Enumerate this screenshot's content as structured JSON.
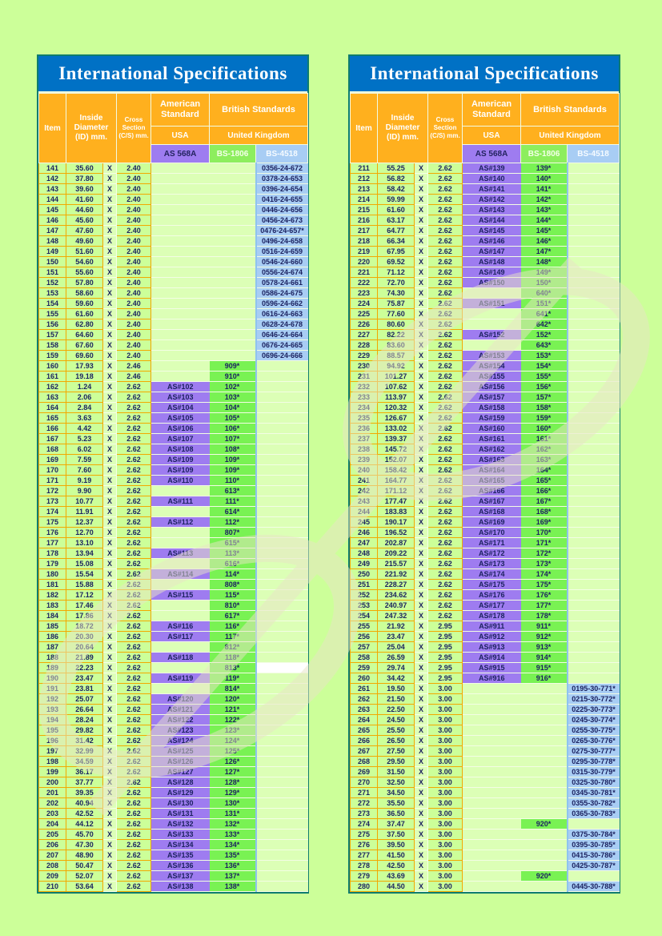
{
  "title": "International Specifications",
  "headers": {
    "item": "Item",
    "inside_diameter": "Inside Diameter (ID) mm.",
    "cross_section": "Cross Section (C/S) mm.",
    "american_standard": "American Standard",
    "british_standards": "British Standards",
    "usa": "USA",
    "united_kingdom": "United Kingdom",
    "as568a": "AS 568A",
    "bs1806": "BS-1806",
    "bs4518": "BS-4518"
  },
  "x_separator": "X",
  "colors": {
    "page_background": "#ccff99",
    "title_bar": "#0071c5",
    "header_orange": "#ffb01e",
    "as568a_purple": "#9e7cf0",
    "bs1806_green": "#79f253",
    "bs4518_blue": "#a8cdf4",
    "panel_border_teal": "#0e7c6e",
    "grid_orange": "#f2a800",
    "text_navy": "#1c2260"
  },
  "left_table": {
    "white_bs4518_item": 189,
    "rows": [
      [
        141,
        "35.60",
        "2.40",
        "",
        "",
        "0356-24-672"
      ],
      [
        142,
        "37.80",
        "2.40",
        "",
        "",
        "0378-24-653"
      ],
      [
        143,
        "39.60",
        "2.40",
        "",
        "",
        "0396-24-654"
      ],
      [
        144,
        "41.60",
        "2.40",
        "",
        "",
        "0416-24-655"
      ],
      [
        145,
        "44.60",
        "2.40",
        "",
        "",
        "0446-24-656"
      ],
      [
        146,
        "45.60",
        "2.40",
        "",
        "",
        "0456-24-673"
      ],
      [
        147,
        "47.60",
        "2.40",
        "",
        "",
        "0476-24-657*"
      ],
      [
        148,
        "49.60",
        "2.40",
        "",
        "",
        "0496-24-658"
      ],
      [
        149,
        "51.60",
        "2.40",
        "",
        "",
        "0516-24-659"
      ],
      [
        150,
        "54.60",
        "2.40",
        "",
        "",
        "0546-24-660"
      ],
      [
        151,
        "55.60",
        "2.40",
        "",
        "",
        "0556-24-674"
      ],
      [
        152,
        "57.80",
        "2.40",
        "",
        "",
        "0578-24-661"
      ],
      [
        153,
        "58.60",
        "2.40",
        "",
        "",
        "0586-24-675"
      ],
      [
        154,
        "59.60",
        "2.40",
        "",
        "",
        "0596-24-662"
      ],
      [
        155,
        "61.60",
        "2.40",
        "",
        "",
        "0616-24-663"
      ],
      [
        156,
        "62.80",
        "2.40",
        "",
        "",
        "0628-24-678"
      ],
      [
        157,
        "64.60",
        "2.40",
        "",
        "",
        "0646-24-664"
      ],
      [
        158,
        "67.60",
        "2.40",
        "",
        "",
        "0676-24-665"
      ],
      [
        159,
        "69.60",
        "2.40",
        "",
        "",
        "0696-24-666"
      ],
      [
        160,
        "17.93",
        "2.46",
        "",
        "909*",
        ""
      ],
      [
        161,
        "19.18",
        "2.46",
        "",
        "910*",
        ""
      ],
      [
        162,
        "1.24",
        "2.62",
        "AS#102",
        "102*",
        ""
      ],
      [
        163,
        "2.06",
        "2.62",
        "AS#103",
        "103*",
        ""
      ],
      [
        164,
        "2.84",
        "2.62",
        "AS#104",
        "104*",
        ""
      ],
      [
        165,
        "3.63",
        "2.62",
        "AS#105",
        "105*",
        ""
      ],
      [
        166,
        "4.42",
        "2.62",
        "AS#106",
        "106*",
        ""
      ],
      [
        167,
        "5.23",
        "2.62",
        "AS#107",
        "107*",
        ""
      ],
      [
        168,
        "6.02",
        "2.62",
        "AS#108",
        "108*",
        ""
      ],
      [
        169,
        "7.59",
        "2.62",
        "AS#109",
        "109*",
        ""
      ],
      [
        170,
        "7.60",
        "2.62",
        "AS#109",
        "109*",
        ""
      ],
      [
        171,
        "9.19",
        "2.62",
        "AS#110",
        "110*",
        ""
      ],
      [
        172,
        "9.90",
        "2.62",
        "",
        "613*",
        ""
      ],
      [
        173,
        "10.77",
        "2.62",
        "AS#111",
        "111*",
        ""
      ],
      [
        174,
        "11.91",
        "2.62",
        "",
        "614*",
        ""
      ],
      [
        175,
        "12.37",
        "2.62",
        "AS#112",
        "112*",
        ""
      ],
      [
        176,
        "12.70",
        "2.62",
        "",
        "807*",
        ""
      ],
      [
        177,
        "13.10",
        "2.62",
        "",
        "615*",
        ""
      ],
      [
        178,
        "13.94",
        "2.62",
        "AS#113",
        "113*",
        ""
      ],
      [
        179,
        "15.08",
        "2.62",
        "",
        "616*",
        ""
      ],
      [
        180,
        "15.54",
        "2.62",
        "AS#114",
        "114*",
        ""
      ],
      [
        181,
        "15.88",
        "2.62",
        "",
        "808*",
        ""
      ],
      [
        182,
        "17.12",
        "2.62",
        "AS#115",
        "115*",
        ""
      ],
      [
        183,
        "17.46",
        "2.62",
        "",
        "810*",
        ""
      ],
      [
        184,
        "17.86",
        "2.62",
        "",
        "617*",
        ""
      ],
      [
        185,
        "18.72",
        "2.62",
        "AS#116",
        "116*",
        ""
      ],
      [
        186,
        "20.30",
        "2.62",
        "AS#117",
        "117*",
        ""
      ],
      [
        187,
        "20.64",
        "2.62",
        "",
        "812*",
        ""
      ],
      [
        188,
        "21.89",
        "2.62",
        "AS#118",
        "118*",
        ""
      ],
      [
        189,
        "22.23",
        "2.62",
        "",
        "813*",
        ""
      ],
      [
        190,
        "23.47",
        "2.62",
        "AS#119",
        "119*",
        ""
      ],
      [
        191,
        "23.81",
        "2.62",
        "",
        "814*",
        ""
      ],
      [
        192,
        "25.07",
        "2.62",
        "AS#120",
        "120*",
        ""
      ],
      [
        193,
        "26.64",
        "2.62",
        "AS#121",
        "121*",
        ""
      ],
      [
        194,
        "28.24",
        "2.62",
        "AS#122",
        "122*",
        ""
      ],
      [
        195,
        "29.82",
        "2.62",
        "AS#123",
        "123*",
        ""
      ],
      [
        196,
        "31.42",
        "2.62",
        "AS#124",
        "124*",
        ""
      ],
      [
        197,
        "32.99",
        "2.62",
        "AS#125",
        "125*",
        ""
      ],
      [
        198,
        "34.59",
        "2.62",
        "AS#126",
        "126*",
        ""
      ],
      [
        199,
        "36.17",
        "2.62",
        "AS#127",
        "127*",
        ""
      ],
      [
        200,
        "37.77",
        "2.62",
        "AS#128",
        "128*",
        ""
      ],
      [
        201,
        "39.35",
        "2.62",
        "AS#129",
        "129*",
        ""
      ],
      [
        202,
        "40.94",
        "2.62",
        "AS#130",
        "130*",
        ""
      ],
      [
        203,
        "42.52",
        "2.62",
        "AS#131",
        "131*",
        ""
      ],
      [
        204,
        "44.12",
        "2.62",
        "AS#132",
        "132*",
        ""
      ],
      [
        205,
        "45.70",
        "2.62",
        "AS#133",
        "133*",
        ""
      ],
      [
        206,
        "47.30",
        "2.62",
        "AS#134",
        "134*",
        ""
      ],
      [
        207,
        "48.90",
        "2.62",
        "AS#135",
        "135*",
        ""
      ],
      [
        208,
        "50.47",
        "2.62",
        "AS#136",
        "136*",
        ""
      ],
      [
        209,
        "52.07",
        "2.62",
        "AS#137",
        "137*",
        ""
      ],
      [
        210,
        "53.64",
        "2.62",
        "AS#138",
        "138*",
        ""
      ]
    ]
  },
  "right_table": {
    "rows": [
      [
        211,
        "55.25",
        "2.62",
        "AS#139",
        "139*",
        ""
      ],
      [
        212,
        "56.82",
        "2.62",
        "AS#140",
        "140*",
        ""
      ],
      [
        213,
        "58.42",
        "2.62",
        "AS#141",
        "141*",
        ""
      ],
      [
        214,
        "59.99",
        "2.62",
        "AS#142",
        "142*",
        ""
      ],
      [
        215,
        "61.60",
        "2.62",
        "AS#143",
        "143*",
        ""
      ],
      [
        216,
        "63.17",
        "2.62",
        "AS#144",
        "144*",
        ""
      ],
      [
        217,
        "64.77",
        "2.62",
        "AS#145",
        "145*",
        ""
      ],
      [
        218,
        "66.34",
        "2.62",
        "AS#146",
        "146*",
        ""
      ],
      [
        219,
        "67.95",
        "2.62",
        "AS#147",
        "147*",
        ""
      ],
      [
        220,
        "69.52",
        "2.62",
        "AS#148",
        "148*",
        ""
      ],
      [
        221,
        "71.12",
        "2.62",
        "AS#149",
        "149*",
        ""
      ],
      [
        222,
        "72.70",
        "2.62",
        "AS#150",
        "150*",
        ""
      ],
      [
        223,
        "74.30",
        "2.62",
        "",
        "640*",
        ""
      ],
      [
        224,
        "75.87",
        "2.62",
        "AS#151",
        "151*",
        ""
      ],
      [
        225,
        "77.60",
        "2.62",
        "",
        "641*",
        ""
      ],
      [
        226,
        "80.60",
        "2.62",
        "",
        "642*",
        ""
      ],
      [
        227,
        "82.22",
        "2.62",
        "AS#152",
        "152*",
        ""
      ],
      [
        228,
        "83.60",
        "2.62",
        "",
        "643*",
        ""
      ],
      [
        229,
        "88.57",
        "2.62",
        "AS#153",
        "153*",
        ""
      ],
      [
        230,
        "94.92",
        "2.62",
        "AS#154",
        "154*",
        ""
      ],
      [
        231,
        "101.27",
        "2.62",
        "AS#155",
        "155*",
        ""
      ],
      [
        232,
        "107.62",
        "2.62",
        "AS#156",
        "156*",
        ""
      ],
      [
        233,
        "113.97",
        "2.62",
        "AS#157",
        "157*",
        ""
      ],
      [
        234,
        "120.32",
        "2.62",
        "AS#158",
        "158*",
        ""
      ],
      [
        235,
        "126.67",
        "2.62",
        "AS#159",
        "159*",
        ""
      ],
      [
        236,
        "133.02",
        "2.62",
        "AS#160",
        "160*",
        ""
      ],
      [
        237,
        "139.37",
        "2.62",
        "AS#161",
        "161*",
        ""
      ],
      [
        238,
        "145.72",
        "2.62",
        "AS#162",
        "162*",
        ""
      ],
      [
        239,
        "152.07",
        "2.62",
        "AS#163",
        "163*",
        ""
      ],
      [
        240,
        "158.42",
        "2.62",
        "AS#164",
        "164*",
        ""
      ],
      [
        241,
        "164.77",
        "2.62",
        "AS#165",
        "165*",
        ""
      ],
      [
        242,
        "171.12",
        "2.62",
        "AS#166",
        "166*",
        ""
      ],
      [
        243,
        "177.47",
        "2.62",
        "AS#167",
        "167*",
        ""
      ],
      [
        244,
        "183.83",
        "2.62",
        "AS#168",
        "168*",
        ""
      ],
      [
        245,
        "190.17",
        "2.62",
        "AS#169",
        "169*",
        ""
      ],
      [
        246,
        "196.52",
        "2.62",
        "AS#170",
        "170*",
        ""
      ],
      [
        247,
        "202.87",
        "2.62",
        "AS#171",
        "171*",
        ""
      ],
      [
        248,
        "209.22",
        "2.62",
        "AS#172",
        "172*",
        ""
      ],
      [
        249,
        "215.57",
        "2.62",
        "AS#173",
        "173*",
        ""
      ],
      [
        250,
        "221.92",
        "2.62",
        "AS#174",
        "174*",
        ""
      ],
      [
        251,
        "228.27",
        "2.62",
        "AS#175",
        "175*",
        ""
      ],
      [
        252,
        "234.62",
        "2.62",
        "AS#176",
        "176*",
        ""
      ],
      [
        253,
        "240.97",
        "2.62",
        "AS#177",
        "177*",
        ""
      ],
      [
        254,
        "247.32",
        "2.62",
        "AS#178",
        "178*",
        ""
      ],
      [
        255,
        "21.92",
        "2.95",
        "AS#911",
        "911*",
        ""
      ],
      [
        256,
        "23.47",
        "2.95",
        "AS#912",
        "912*",
        ""
      ],
      [
        257,
        "25.04",
        "2.95",
        "AS#913",
        "913*",
        ""
      ],
      [
        258,
        "26.59",
        "2.95",
        "AS#914",
        "914*",
        ""
      ],
      [
        259,
        "29.74",
        "2.95",
        "AS#915",
        "915*",
        ""
      ],
      [
        260,
        "34.42",
        "2.95",
        "AS#916",
        "916*",
        ""
      ],
      [
        261,
        "19.50",
        "3.00",
        "",
        "",
        "0195-30-771*"
      ],
      [
        262,
        "21.50",
        "3.00",
        "",
        "",
        "0215-30-772*"
      ],
      [
        263,
        "22.50",
        "3.00",
        "",
        "",
        "0225-30-773*"
      ],
      [
        264,
        "24.50",
        "3.00",
        "",
        "",
        "0245-30-774*"
      ],
      [
        265,
        "25.50",
        "3.00",
        "",
        "",
        "0255-30-775*"
      ],
      [
        266,
        "26.50",
        "3.00",
        "",
        "",
        "0265-30-776*"
      ],
      [
        267,
        "27.50",
        "3.00",
        "",
        "",
        "0275-30-777*"
      ],
      [
        268,
        "29.50",
        "3.00",
        "",
        "",
        "0295-30-778*"
      ],
      [
        269,
        "31.50",
        "3.00",
        "",
        "",
        "0315-30-779*"
      ],
      [
        270,
        "32.50",
        "3.00",
        "",
        "",
        "0325-30-780*"
      ],
      [
        271,
        "34.50",
        "3.00",
        "",
        "",
        "0345-30-781*"
      ],
      [
        272,
        "35.50",
        "3.00",
        "",
        "",
        "0355-30-782*"
      ],
      [
        273,
        "36.50",
        "3.00",
        "",
        "",
        "0365-30-783*"
      ],
      [
        274,
        "37.47",
        "3.00",
        "",
        "920*",
        ""
      ],
      [
        275,
        "37.50",
        "3.00",
        "",
        "",
        "0375-30-784*"
      ],
      [
        276,
        "39.50",
        "3.00",
        "",
        "",
        "0395-30-785*"
      ],
      [
        277,
        "41.50",
        "3.00",
        "",
        "",
        "0415-30-786*"
      ],
      [
        278,
        "42.50",
        "3.00",
        "",
        "",
        "0425-30-787*"
      ],
      [
        279,
        "43.69",
        "3.00",
        "",
        "920*",
        ""
      ],
      [
        280,
        "44.50",
        "3.00",
        "",
        "",
        "0445-30-788*"
      ]
    ]
  }
}
